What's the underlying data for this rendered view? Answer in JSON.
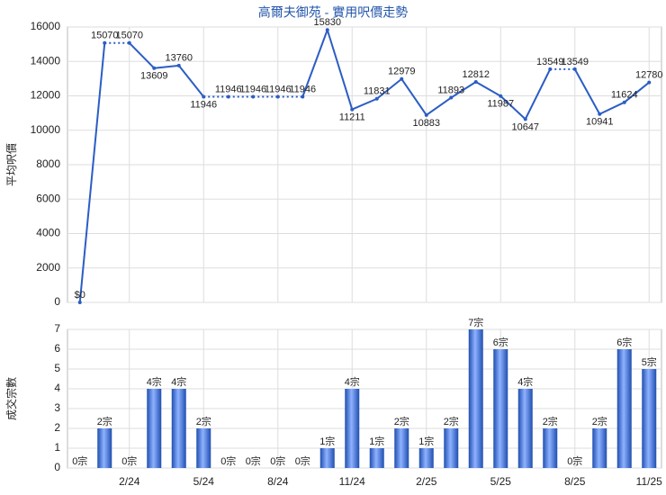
{
  "chart_data": [
    {
      "type": "line",
      "title": "高爾夫御苑 - 實用呎價走勢",
      "y_label": "平均呎價",
      "color": "#2b5dc4",
      "values": [
        0,
        15070,
        15070,
        13609,
        13760,
        11946,
        11946,
        11946,
        11946,
        11946,
        15830,
        11211,
        11831,
        12979,
        10883,
        11893,
        12812,
        11987,
        10647,
        13549,
        13549,
        10941,
        11624,
        12780
      ],
      "value_labels": [
        "$0",
        "15070",
        "15070",
        "13609",
        "13760",
        "11946",
        "11946",
        "11946",
        "11946",
        "11946",
        "15830",
        "11211",
        "11831",
        "12979",
        "10883",
        "11893",
        "12812",
        "11987",
        "10647",
        "13549",
        "13549",
        "10941",
        "11624",
        "12780"
      ],
      "ylim": [
        0,
        16000
      ],
      "yticks": [
        0,
        2000,
        4000,
        6000,
        8000,
        10000,
        12000,
        14000,
        16000
      ],
      "grid": true
    },
    {
      "type": "bar",
      "y_label": "成交宗數",
      "color": "#3a6fd8",
      "categories": [
        null,
        null,
        "2/24",
        null,
        null,
        "5/24",
        null,
        null,
        "8/24",
        null,
        null,
        "11/24",
        null,
        null,
        "2/25",
        null,
        null,
        "5/25",
        null,
        null,
        "8/25",
        null,
        null,
        "11/25"
      ],
      "values": [
        0,
        2,
        0,
        4,
        4,
        2,
        0,
        0,
        0,
        0,
        1,
        4,
        1,
        2,
        1,
        2,
        7,
        6,
        4,
        2,
        0,
        2,
        6,
        5
      ],
      "value_labels": [
        "0宗",
        "2宗",
        "0宗",
        "4宗",
        "4宗",
        "2宗",
        "0宗",
        "0宗",
        "0宗",
        "0宗",
        "1宗",
        "4宗",
        "1宗",
        "2宗",
        "1宗",
        "2宗",
        "7宗",
        "6宗",
        "4宗",
        "2宗",
        "0宗",
        "2宗",
        "6宗",
        "5宗"
      ],
      "ylim": [
        0,
        7
      ],
      "yticks": [
        0,
        1,
        2,
        3,
        4,
        5,
        6,
        7
      ],
      "grid": true
    }
  ]
}
